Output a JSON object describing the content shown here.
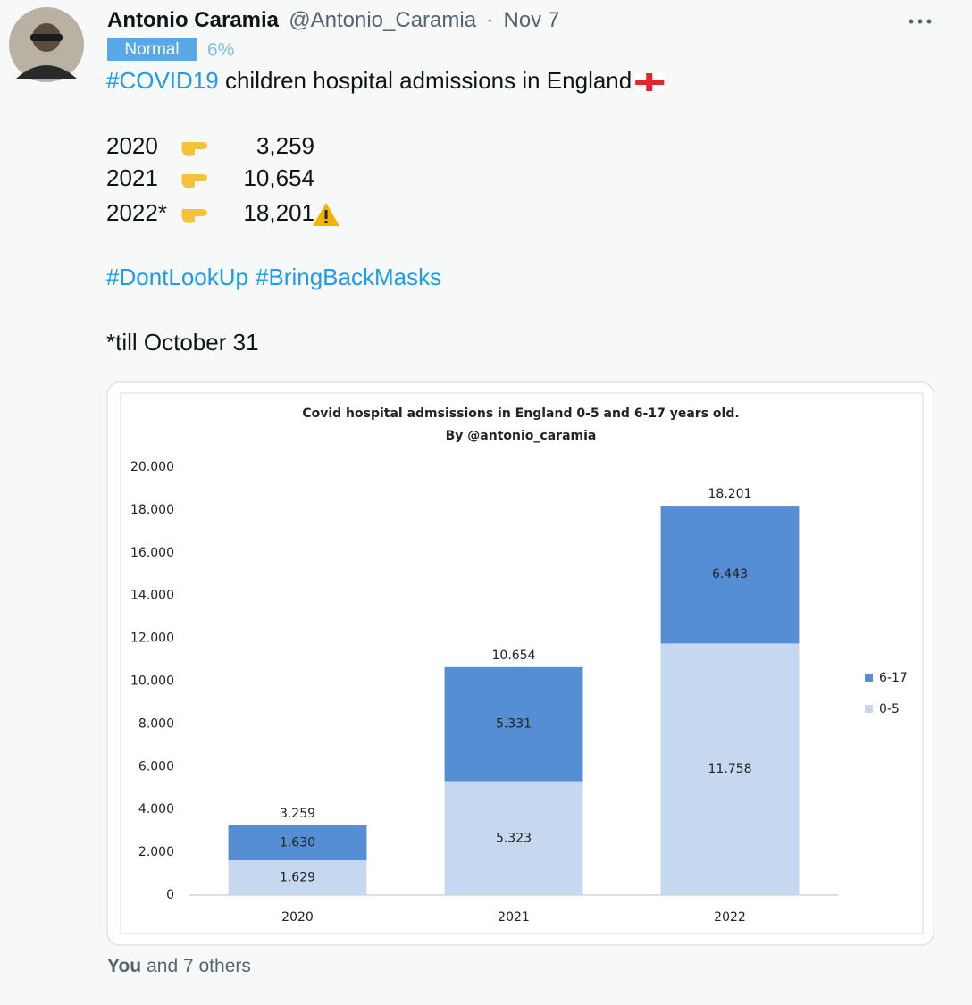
{
  "tweet": {
    "author": "Antonio Caramia",
    "handle": "@Antonio_Caramia",
    "separator": "·",
    "date": "Nov 7",
    "badge": "Normal",
    "badge_value": "6%",
    "headline": {
      "hashtag": "#COVID19",
      "text": " children hospital admissions in England"
    },
    "counts": [
      {
        "year": "2020",
        "count": "3,259"
      },
      {
        "year": "2021",
        "count": "10,654"
      },
      {
        "year": "2022*",
        "count": "18,201"
      }
    ],
    "hashtags": [
      "#DontLookUp",
      "#BringBackMasks"
    ],
    "note": "*till October 31",
    "likes": {
      "who": "You",
      "rest": "and 7 others"
    }
  },
  "chart_data": {
    "type": "stacked-bar",
    "title": "Covid hospital admsissions in England 0-5 and 6-17 years old.",
    "subtitle": "By  @antonio_caramia",
    "categories": [
      "2020",
      "2021",
      "2022"
    ],
    "series": [
      {
        "name": "0-5",
        "color": "#c6d8ef",
        "values": [
          1629,
          5323,
          11758
        ],
        "value_labels": [
          "1.629",
          "5.323",
          "11.758"
        ]
      },
      {
        "name": "6-17",
        "color": "#558ed5",
        "values": [
          1630,
          5331,
          6443
        ],
        "value_labels": [
          "1.630",
          "5.331",
          "6.443"
        ]
      }
    ],
    "totals": {
      "values": [
        3259,
        10654,
        18201
      ],
      "value_labels": [
        "3.259",
        "10.654",
        "18.201"
      ]
    },
    "ylim": [
      0,
      20000
    ],
    "yticks": [
      0,
      {
        "value": 2000,
        "label": "2.000"
      },
      {
        "value": 4000,
        "label": "4.000"
      },
      {
        "value": 6000,
        "label": "6.000"
      },
      {
        "value": 8000,
        "label": "8.000"
      },
      {
        "value": 10000,
        "label": "10.000"
      },
      {
        "value": 12000,
        "label": "12.000"
      },
      {
        "value": 14000,
        "label": "14.000"
      },
      {
        "value": 16000,
        "label": "16.000"
      },
      {
        "value": 18000,
        "label": "18.000"
      },
      {
        "value": 20000,
        "label": "20.000"
      }
    ],
    "grid": false,
    "legend": "right"
  }
}
